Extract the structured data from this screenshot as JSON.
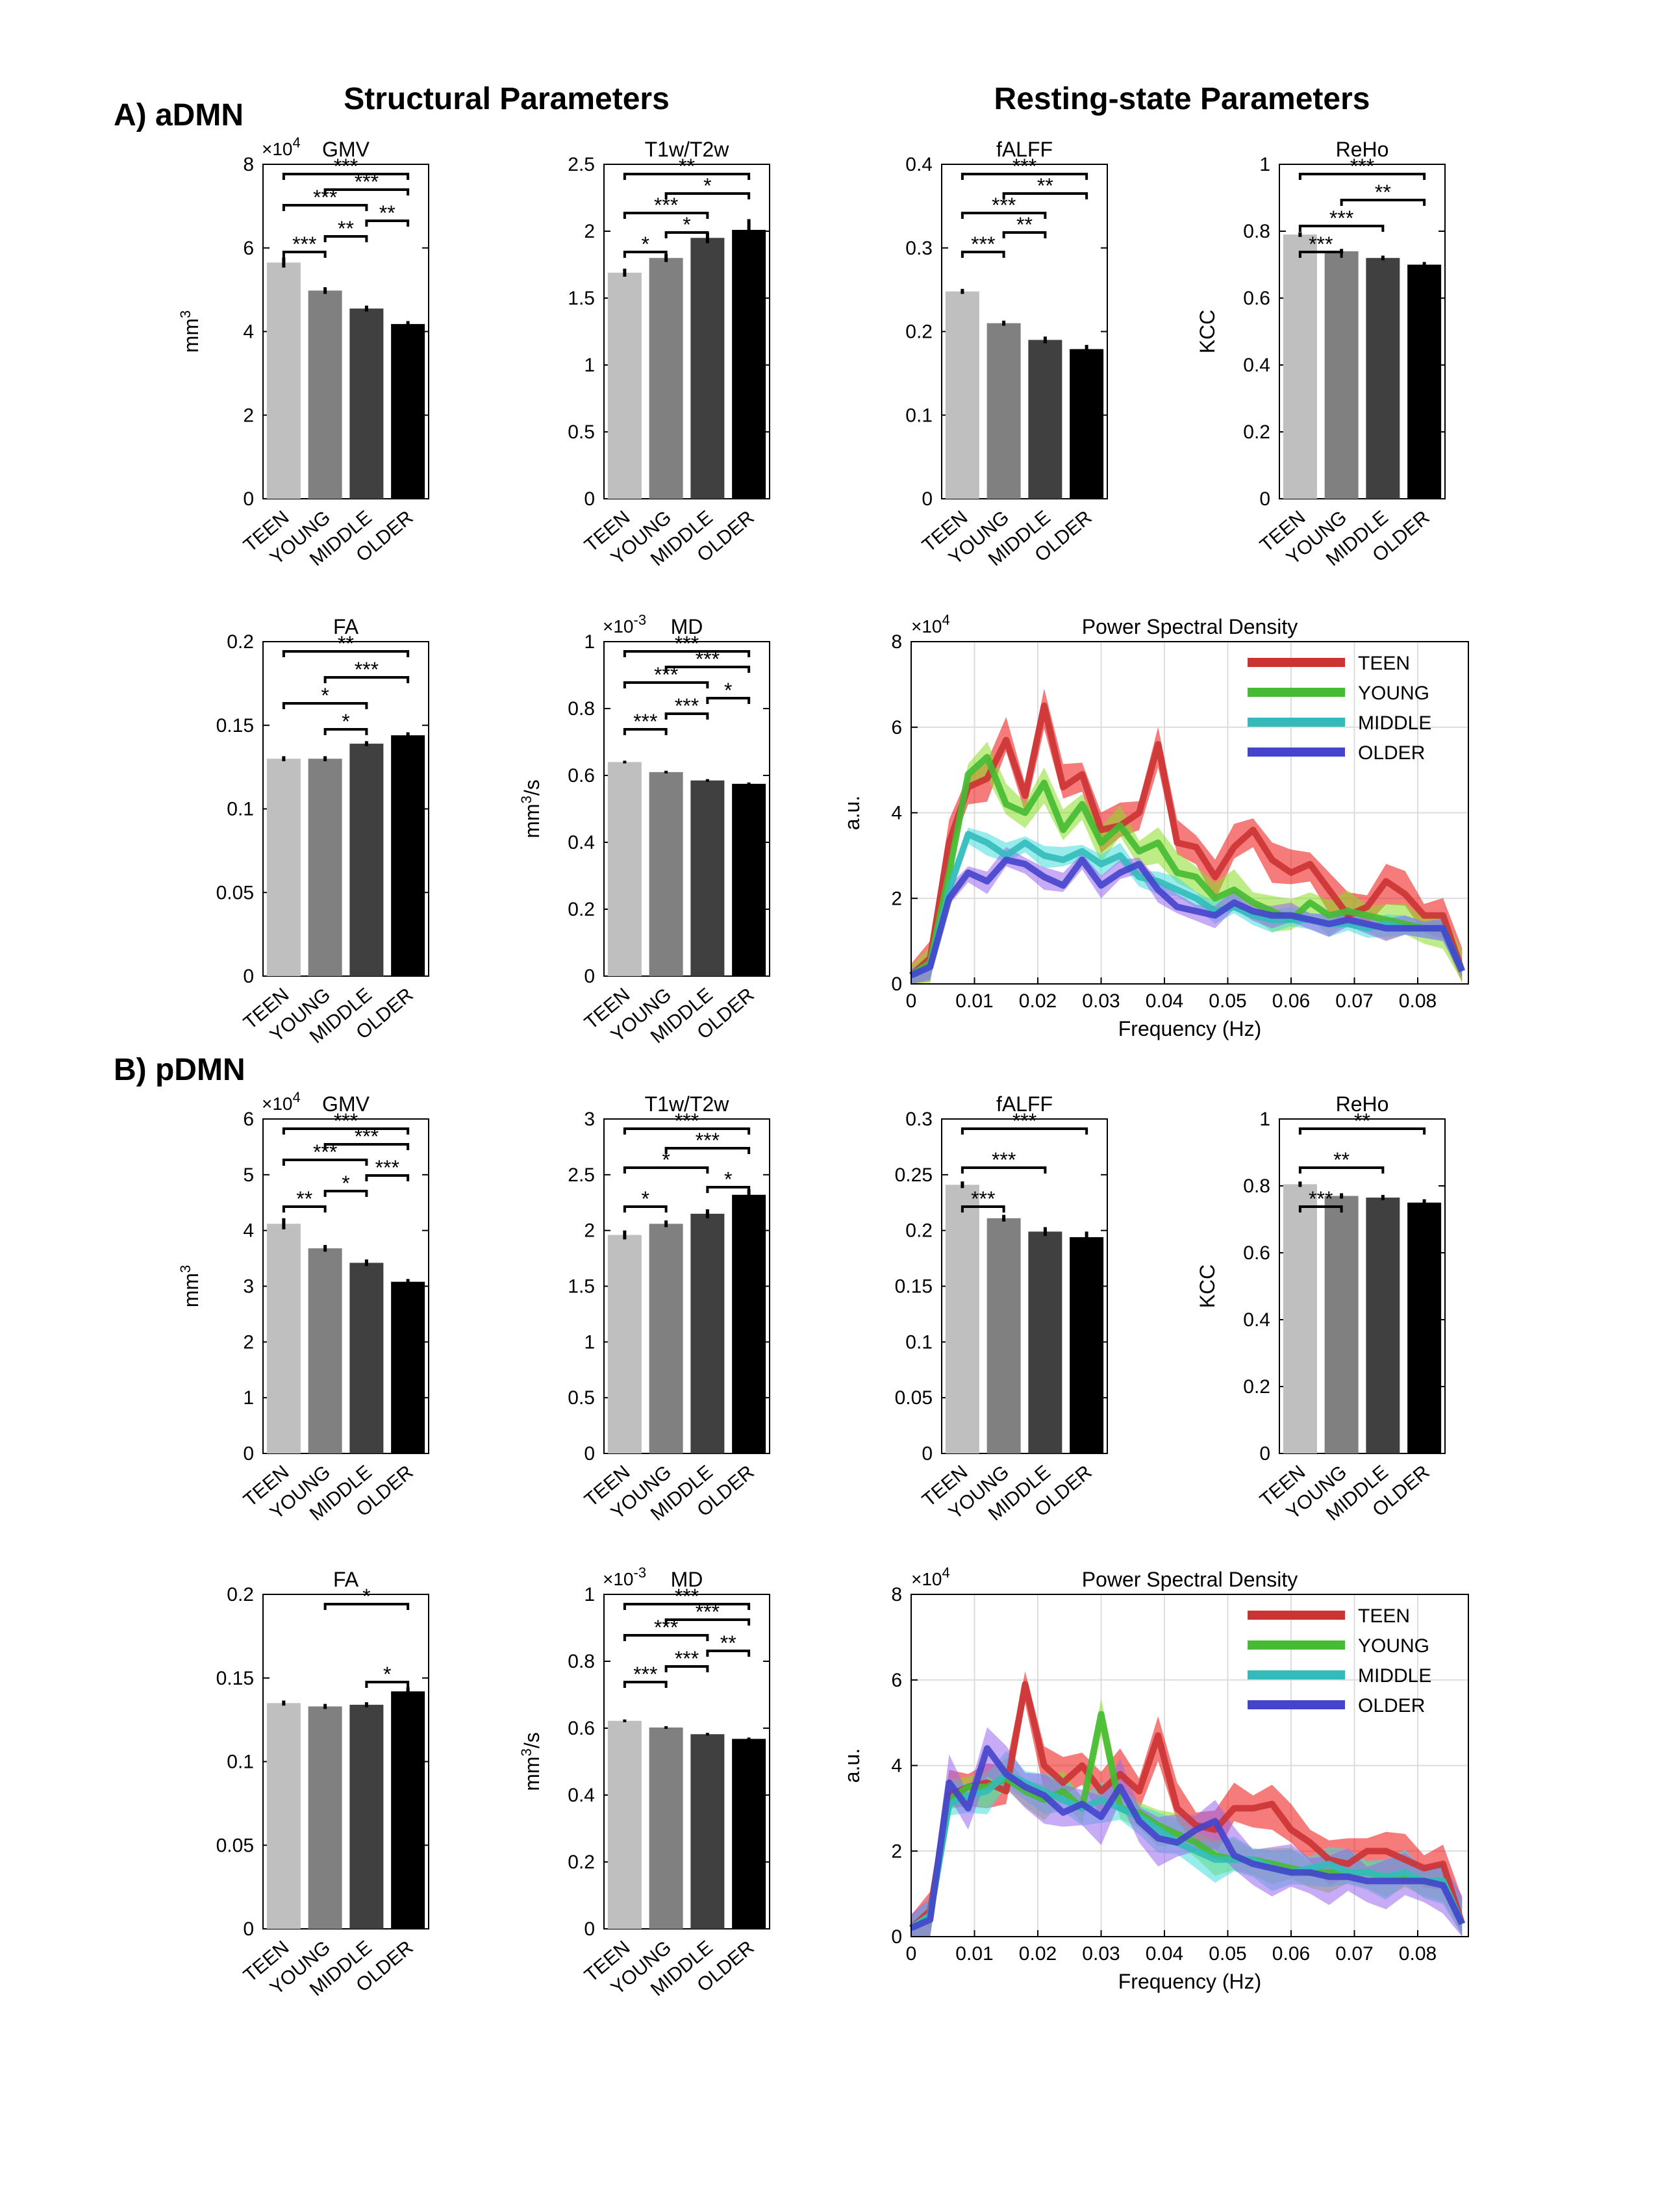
{
  "labels": {
    "section_a": "A) aDMN",
    "section_b": "B) pDMN",
    "header_structural": "Structural Parameters",
    "header_resting": "Resting-state Parameters"
  },
  "colors": {
    "bars": [
      "#bfbfbf",
      "#808080",
      "#404040",
      "#000000"
    ],
    "psd": {
      "TEEN": "#cc3333",
      "YOUNG": "#44bb33",
      "MIDDLE": "#33bbbb",
      "OLDER": "#4444cc"
    },
    "psd_band": {
      "TEEN": "#ee1111",
      "YOUNG": "#88dd22",
      "MIDDLE": "#44dddd",
      "OLDER": "#9966ee"
    }
  },
  "chart_data": [
    {
      "id": "a-gmv",
      "type": "bar",
      "title": "GMV",
      "categories": [
        "TEEN",
        "YOUNG",
        "MIDDLE",
        "OLDER"
      ],
      "values": [
        5.65,
        4.98,
        4.55,
        4.18
      ],
      "errors": [
        0.12,
        0.08,
        0.07,
        0.07
      ],
      "ylim": [
        0,
        8
      ],
      "yticks": [
        "0",
        "2",
        "4",
        "6",
        "8"
      ],
      "ylabel": "mm",
      "ylabel_sup": "3",
      "multiplier": "×10",
      "multiplier_exp": "4",
      "brackets": [
        {
          "from": 1,
          "to": 2,
          "stars": "***"
        },
        {
          "from": 2,
          "to": 3,
          "stars": "**"
        },
        {
          "from": 3,
          "to": 4,
          "stars": "**"
        },
        {
          "from": 1,
          "to": 3,
          "stars": "***"
        },
        {
          "from": 2,
          "to": 4,
          "stars": "***"
        },
        {
          "from": 1,
          "to": 4,
          "stars": "***"
        }
      ]
    },
    {
      "id": "a-t1",
      "type": "bar",
      "title": "T1w/T2w",
      "categories": [
        "TEEN",
        "YOUNG",
        "MIDDLE",
        "OLDER"
      ],
      "values": [
        1.69,
        1.8,
        1.95,
        2.01
      ],
      "errors": [
        0.03,
        0.03,
        0.04,
        0.08
      ],
      "ylim": [
        0,
        2.5
      ],
      "yticks": [
        "0",
        "0.5",
        "1",
        "1.5",
        "2",
        "2.5"
      ],
      "ylabel": "",
      "brackets": [
        {
          "from": 1,
          "to": 2,
          "stars": "*"
        },
        {
          "from": 2,
          "to": 3,
          "stars": "*"
        },
        {
          "from": 1,
          "to": 3,
          "stars": "***"
        },
        {
          "from": 2,
          "to": 4,
          "stars": "*"
        },
        {
          "from": 1,
          "to": 4,
          "stars": "**"
        }
      ]
    },
    {
      "id": "a-falff",
      "type": "bar",
      "title": "fALFF",
      "categories": [
        "TEEN",
        "YOUNG",
        "MIDDLE",
        "OLDER"
      ],
      "values": [
        0.248,
        0.21,
        0.19,
        0.179
      ],
      "errors": [
        0.003,
        0.003,
        0.004,
        0.005
      ],
      "ylim": [
        0,
        0.4
      ],
      "yticks": [
        "0",
        "0.1",
        "0.2",
        "0.3",
        "0.4"
      ],
      "ylabel": "",
      "brackets": [
        {
          "from": 1,
          "to": 2,
          "stars": "***"
        },
        {
          "from": 2,
          "to": 3,
          "stars": "**"
        },
        {
          "from": 1,
          "to": 3,
          "stars": "***"
        },
        {
          "from": 2,
          "to": 4,
          "stars": "**"
        },
        {
          "from": 1,
          "to": 4,
          "stars": "***"
        }
      ]
    },
    {
      "id": "a-reho",
      "type": "bar",
      "title": "ReHo",
      "categories": [
        "TEEN",
        "YOUNG",
        "MIDDLE",
        "OLDER"
      ],
      "values": [
        0.79,
        0.74,
        0.72,
        0.7
      ],
      "errors": [
        0.007,
        0.007,
        0.007,
        0.008
      ],
      "ylim": [
        0,
        1
      ],
      "yticks": [
        "0",
        "0.2",
        "0.4",
        "0.6",
        "0.8",
        "1"
      ],
      "ylabel": "KCC",
      "brackets": [
        {
          "from": 1,
          "to": 2,
          "stars": "***"
        },
        {
          "from": 1,
          "to": 3,
          "stars": "***"
        },
        {
          "from": 2,
          "to": 4,
          "stars": "**"
        },
        {
          "from": 1,
          "to": 4,
          "stars": "***"
        }
      ]
    },
    {
      "id": "a-fa",
      "type": "bar",
      "title": "FA",
      "categories": [
        "TEEN",
        "YOUNG",
        "MIDDLE",
        "OLDER"
      ],
      "values": [
        0.13,
        0.13,
        0.139,
        0.144
      ],
      "errors": [
        0.0015,
        0.0015,
        0.0015,
        0.0018
      ],
      "ylim": [
        0,
        0.2
      ],
      "yticks": [
        "0",
        "0.05",
        "0.1",
        "0.15",
        "0.2"
      ],
      "ylabel": "",
      "brackets": [
        {
          "from": 2,
          "to": 3,
          "stars": "*"
        },
        {
          "from": 1,
          "to": 3,
          "stars": "*"
        },
        {
          "from": 2,
          "to": 4,
          "stars": "***"
        },
        {
          "from": 1,
          "to": 4,
          "stars": "**"
        }
      ]
    },
    {
      "id": "a-md",
      "type": "bar",
      "title": "MD",
      "categories": [
        "TEEN",
        "YOUNG",
        "MIDDLE",
        "OLDER"
      ],
      "values": [
        0.64,
        0.61,
        0.585,
        0.575
      ],
      "errors": [
        0.004,
        0.004,
        0.004,
        0.004
      ],
      "ylim": [
        0,
        1
      ],
      "yticks": [
        "0",
        "0.2",
        "0.4",
        "0.6",
        "0.8",
        "1"
      ],
      "ylabel": "mm",
      "ylabel_sup": "3",
      "ylabel_tail": "/s",
      "multiplier": "×10",
      "multiplier_exp": "-3",
      "brackets": [
        {
          "from": 1,
          "to": 2,
          "stars": "***"
        },
        {
          "from": 2,
          "to": 3,
          "stars": "***"
        },
        {
          "from": 3,
          "to": 4,
          "stars": "*"
        },
        {
          "from": 1,
          "to": 3,
          "stars": "***"
        },
        {
          "from": 2,
          "to": 4,
          "stars": "***"
        },
        {
          "from": 1,
          "to": 4,
          "stars": "***"
        }
      ]
    },
    {
      "id": "a-psd",
      "type": "line",
      "title": "Power Spectral Density",
      "xlabel": "Frequency (Hz)",
      "ylabel": "a.u.",
      "xlim": [
        0,
        0.088
      ],
      "ylim": [
        0,
        8
      ],
      "xticks": [
        "0",
        "0.01",
        "0.02",
        "0.03",
        "0.04",
        "0.05",
        "0.06",
        "0.07",
        "0.08"
      ],
      "yticks": [
        "0",
        "2",
        "4",
        "6",
        "8"
      ],
      "multiplier": "×10",
      "multiplier_exp": "4",
      "x": [
        0,
        0.003,
        0.006,
        0.009,
        0.012,
        0.015,
        0.018,
        0.021,
        0.024,
        0.027,
        0.03,
        0.033,
        0.036,
        0.039,
        0.042,
        0.045,
        0.048,
        0.051,
        0.054,
        0.057,
        0.06,
        0.063,
        0.066,
        0.069,
        0.072,
        0.075,
        0.078,
        0.081,
        0.084,
        0.087
      ],
      "series": [
        {
          "name": "TEEN",
          "values": [
            0.2,
            0.6,
            3.3,
            4.6,
            4.8,
            5.7,
            4.4,
            6.5,
            4.6,
            4.9,
            3.6,
            3.7,
            4.0,
            5.6,
            3.3,
            3.2,
            2.5,
            3.2,
            3.6,
            2.9,
            2.6,
            2.8,
            2.2,
            1.6,
            1.8,
            2.4,
            2.1,
            1.6,
            1.6,
            0.3
          ],
          "band": 0.45
        },
        {
          "name": "YOUNG",
          "values": [
            0.2,
            0.5,
            2.6,
            4.9,
            5.3,
            4.2,
            4.0,
            4.7,
            3.6,
            4.2,
            3.3,
            3.7,
            3.1,
            3.3,
            2.6,
            2.5,
            2.0,
            2.2,
            1.9,
            1.7,
            1.5,
            1.9,
            1.6,
            1.7,
            1.6,
            1.5,
            1.4,
            1.3,
            1.3,
            0.3
          ],
          "band": 0.4
        },
        {
          "name": "MIDDLE",
          "values": [
            0.2,
            0.4,
            2.2,
            3.5,
            3.3,
            3.0,
            3.3,
            3.0,
            2.9,
            3.1,
            2.8,
            3.0,
            2.5,
            2.4,
            2.2,
            2.0,
            1.7,
            1.8,
            1.6,
            1.5,
            1.5,
            1.5,
            1.4,
            1.4,
            1.3,
            1.4,
            1.3,
            1.3,
            1.3,
            0.3
          ],
          "band": 0.25
        },
        {
          "name": "OLDER",
          "values": [
            0.2,
            0.4,
            2.0,
            2.6,
            2.4,
            2.9,
            2.8,
            2.5,
            2.3,
            2.9,
            2.3,
            2.6,
            2.8,
            2.2,
            1.8,
            1.7,
            1.6,
            1.9,
            1.7,
            1.6,
            1.6,
            1.5,
            1.4,
            1.5,
            1.4,
            1.3,
            1.3,
            1.3,
            1.3,
            0.3
          ],
          "band": 0.25
        }
      ]
    },
    {
      "id": "b-gmv",
      "type": "bar",
      "title": "GMV",
      "categories": [
        "TEEN",
        "YOUNG",
        "MIDDLE",
        "OLDER"
      ],
      "values": [
        4.12,
        3.68,
        3.42,
        3.08
      ],
      "errors": [
        0.1,
        0.06,
        0.06,
        0.05
      ],
      "ylim": [
        0,
        6
      ],
      "yticks": [
        "0",
        "1",
        "2",
        "3",
        "4",
        "5",
        "6"
      ],
      "ylabel": "mm",
      "ylabel_sup": "3",
      "multiplier": "×10",
      "multiplier_exp": "4",
      "brackets": [
        {
          "from": 1,
          "to": 2,
          "stars": "**"
        },
        {
          "from": 2,
          "to": 3,
          "stars": "*"
        },
        {
          "from": 3,
          "to": 4,
          "stars": "***"
        },
        {
          "from": 1,
          "to": 3,
          "stars": "***"
        },
        {
          "from": 2,
          "to": 4,
          "stars": "***"
        },
        {
          "from": 1,
          "to": 4,
          "stars": "***"
        }
      ]
    },
    {
      "id": "b-t1",
      "type": "bar",
      "title": "T1w/T2w",
      "categories": [
        "TEEN",
        "YOUNG",
        "MIDDLE",
        "OLDER"
      ],
      "values": [
        1.96,
        2.06,
        2.15,
        2.32
      ],
      "errors": [
        0.04,
        0.03,
        0.04,
        0.05
      ],
      "ylim": [
        0,
        3
      ],
      "yticks": [
        "0",
        "0.5",
        "1",
        "1.5",
        "2",
        "2.5",
        "3"
      ],
      "ylabel": "",
      "brackets": [
        {
          "from": 1,
          "to": 2,
          "stars": "*"
        },
        {
          "from": 3,
          "to": 4,
          "stars": "*"
        },
        {
          "from": 1,
          "to": 3,
          "stars": "*"
        },
        {
          "from": 2,
          "to": 4,
          "stars": "***"
        },
        {
          "from": 1,
          "to": 4,
          "stars": "***"
        }
      ]
    },
    {
      "id": "b-falff",
      "type": "bar",
      "title": "fALFF",
      "categories": [
        "TEEN",
        "YOUNG",
        "MIDDLE",
        "OLDER"
      ],
      "values": [
        0.241,
        0.211,
        0.199,
        0.194
      ],
      "errors": [
        0.003,
        0.003,
        0.004,
        0.005
      ],
      "ylim": [
        0,
        0.3
      ],
      "yticks": [
        "0",
        "0.05",
        "0.1",
        "0.15",
        "0.2",
        "0.25",
        "0.3"
      ],
      "ylabel": "",
      "brackets": [
        {
          "from": 1,
          "to": 2,
          "stars": "***"
        },
        {
          "from": 1,
          "to": 3,
          "stars": "***"
        },
        {
          "from": 1,
          "to": 4,
          "stars": "***"
        }
      ]
    },
    {
      "id": "b-reho",
      "type": "bar",
      "title": "ReHo",
      "categories": [
        "TEEN",
        "YOUNG",
        "MIDDLE",
        "OLDER"
      ],
      "values": [
        0.805,
        0.77,
        0.765,
        0.75
      ],
      "errors": [
        0.008,
        0.008,
        0.008,
        0.01
      ],
      "ylim": [
        0,
        1
      ],
      "yticks": [
        "0",
        "0.2",
        "0.4",
        "0.6",
        "0.8",
        "1"
      ],
      "ylabel": "KCC",
      "brackets": [
        {
          "from": 1,
          "to": 2,
          "stars": "***"
        },
        {
          "from": 1,
          "to": 3,
          "stars": "**"
        },
        {
          "from": 1,
          "to": 4,
          "stars": "**"
        }
      ]
    },
    {
      "id": "b-fa",
      "type": "bar",
      "title": "FA",
      "categories": [
        "TEEN",
        "YOUNG",
        "MIDDLE",
        "OLDER"
      ],
      "values": [
        0.135,
        0.133,
        0.134,
        0.142
      ],
      "errors": [
        0.0015,
        0.0015,
        0.0015,
        0.0025
      ],
      "ylim": [
        0,
        0.2
      ],
      "yticks": [
        "0",
        "0.05",
        "0.1",
        "0.15",
        "0.2"
      ],
      "ylabel": "",
      "brackets": [
        {
          "from": 3,
          "to": 4,
          "stars": "*"
        },
        {
          "from": 2,
          "to": 4,
          "stars": "*"
        }
      ]
    },
    {
      "id": "b-md",
      "type": "bar",
      "title": "MD",
      "categories": [
        "TEEN",
        "YOUNG",
        "MIDDLE",
        "OLDER"
      ],
      "values": [
        0.622,
        0.602,
        0.582,
        0.568
      ],
      "errors": [
        0.004,
        0.004,
        0.004,
        0.004
      ],
      "ylim": [
        0,
        1
      ],
      "yticks": [
        "0",
        "0.2",
        "0.4",
        "0.6",
        "0.8",
        "1"
      ],
      "ylabel": "mm",
      "ylabel_sup": "3",
      "ylabel_tail": "/s",
      "multiplier": "×10",
      "multiplier_exp": "-3",
      "brackets": [
        {
          "from": 1,
          "to": 2,
          "stars": "***"
        },
        {
          "from": 2,
          "to": 3,
          "stars": "***"
        },
        {
          "from": 3,
          "to": 4,
          "stars": "**"
        },
        {
          "from": 1,
          "to": 3,
          "stars": "***"
        },
        {
          "from": 2,
          "to": 4,
          "stars": "***"
        },
        {
          "from": 1,
          "to": 4,
          "stars": "***"
        }
      ]
    },
    {
      "id": "b-psd",
      "type": "line",
      "title": "Power Spectral Density",
      "xlabel": "Frequency (Hz)",
      "ylabel": "a.u.",
      "xlim": [
        0,
        0.088
      ],
      "ylim": [
        0,
        8
      ],
      "xticks": [
        "0",
        "0.01",
        "0.02",
        "0.03",
        "0.04",
        "0.05",
        "0.06",
        "0.07",
        "0.08"
      ],
      "yticks": [
        "0",
        "2",
        "4",
        "6",
        "8"
      ],
      "multiplier": "×10",
      "multiplier_exp": "4",
      "x": [
        0,
        0.003,
        0.006,
        0.009,
        0.012,
        0.015,
        0.018,
        0.021,
        0.024,
        0.027,
        0.03,
        0.033,
        0.036,
        0.039,
        0.042,
        0.045,
        0.048,
        0.051,
        0.054,
        0.057,
        0.06,
        0.063,
        0.066,
        0.069,
        0.072,
        0.075,
        0.078,
        0.081,
        0.084,
        0.087
      ],
      "series": [
        {
          "name": "TEEN",
          "values": [
            0.2,
            0.6,
            3.3,
            3.5,
            3.6,
            3.4,
            5.9,
            4.0,
            3.6,
            4.0,
            3.4,
            3.8,
            3.4,
            4.7,
            3.0,
            2.6,
            2.5,
            3.0,
            3.0,
            3.1,
            2.5,
            2.2,
            1.8,
            1.7,
            2.0,
            2.0,
            1.8,
            1.6,
            1.7,
            0.3
          ],
          "band": 0.5
        },
        {
          "name": "YOUNG",
          "values": [
            0.2,
            0.5,
            3.2,
            3.5,
            3.5,
            3.7,
            3.4,
            3.2,
            3.4,
            3.0,
            5.2,
            3.0,
            2.9,
            2.6,
            2.4,
            2.2,
            1.9,
            1.8,
            1.8,
            1.7,
            1.6,
            1.5,
            1.5,
            1.5,
            1.5,
            1.4,
            1.4,
            1.3,
            1.3,
            0.3
          ],
          "band": 0.4
        },
        {
          "name": "MIDDLE",
          "values": [
            0.2,
            0.5,
            3.1,
            3.3,
            3.4,
            3.8,
            3.6,
            3.4,
            3.2,
            3.0,
            3.2,
            3.0,
            2.8,
            2.5,
            2.2,
            2.0,
            1.8,
            1.8,
            1.8,
            1.6,
            1.5,
            1.6,
            1.7,
            1.5,
            1.5,
            1.4,
            1.5,
            1.3,
            1.3,
            0.3
          ],
          "band": 0.45
        },
        {
          "name": "OLDER",
          "values": [
            0.2,
            0.4,
            3.6,
            3.0,
            4.4,
            3.8,
            3.5,
            3.3,
            2.9,
            3.1,
            2.8,
            3.5,
            2.7,
            2.3,
            2.2,
            2.5,
            2.7,
            1.9,
            1.7,
            1.6,
            1.5,
            1.5,
            1.4,
            1.4,
            1.3,
            1.3,
            1.3,
            1.3,
            1.2,
            0.3
          ],
          "band": 0.55
        }
      ]
    }
  ]
}
